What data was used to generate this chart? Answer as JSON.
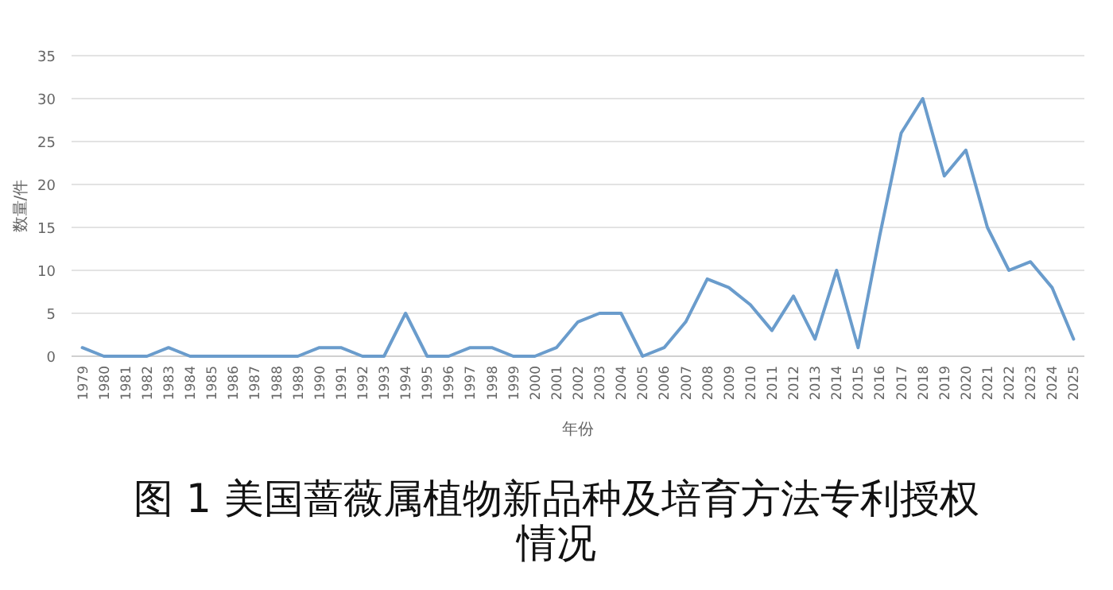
{
  "chart_data": {
    "type": "line",
    "title": "图 1  美国蔷薇属植物新品种及培育方法专利授权情况",
    "xlabel": "年份",
    "ylabel": "数量/件",
    "categories": [
      "1979",
      "1980",
      "1981",
      "1982",
      "1983",
      "1984",
      "1985",
      "1986",
      "1987",
      "1988",
      "1989",
      "1990",
      "1991",
      "1992",
      "1993",
      "1994",
      "1995",
      "1996",
      "1997",
      "1998",
      "1999",
      "2000",
      "2001",
      "2002",
      "2003",
      "2004",
      "2005",
      "2006",
      "2007",
      "2008",
      "2009",
      "2010",
      "2011",
      "2012",
      "2013",
      "2014",
      "2015",
      "2016",
      "2017",
      "2018",
      "2019",
      "2020",
      "2021",
      "2022",
      "2023",
      "2024",
      "2025"
    ],
    "series": [
      {
        "color": "#6a9ccc",
        "values": [
          1,
          0,
          0,
          0,
          1,
          0,
          0,
          0,
          0,
          0,
          0,
          1,
          1,
          0,
          0,
          5,
          0,
          0,
          1,
          1,
          0,
          0,
          1,
          4,
          5,
          5,
          0,
          1,
          4,
          9,
          8,
          6,
          3,
          7,
          2,
          10,
          1,
          14,
          26,
          30,
          21,
          24,
          15,
          10,
          11,
          8,
          2
        ]
      }
    ],
    "ylim": [
      0,
      35
    ],
    "yticks": [
      0,
      5,
      10,
      15,
      20,
      25,
      30,
      35
    ],
    "grid": "y",
    "marker": "none",
    "line_style": "solid"
  }
}
